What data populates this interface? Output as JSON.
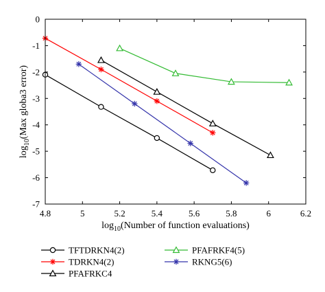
{
  "chart_data": {
    "type": "line",
    "xlabel_prefix": "log",
    "xlabel_sub": "10",
    "xlabel_rest": "(Number of function evaluations)",
    "ylabel_prefix": "log",
    "ylabel_sub": "10",
    "ylabel_rest": "(Max globa3 error)",
    "xlim": [
      4.8,
      6.2
    ],
    "ylim": [
      -7,
      0
    ],
    "xticks": [
      4.8,
      5,
      5.2,
      5.4,
      5.6,
      5.8,
      6,
      6.2
    ],
    "xtick_labels": [
      "4.8",
      "5",
      "5.2",
      "5.4",
      "5.6",
      "5.8",
      "6",
      "6.2"
    ],
    "yticks": [
      0,
      -1,
      -2,
      -3,
      -4,
      -5,
      -6,
      -7
    ],
    "ytick_labels": [
      "0",
      "-1",
      "-2",
      "-3",
      "-4",
      "-5",
      "-6",
      "-7"
    ],
    "grid": false,
    "legend_placement": "below",
    "series": [
      {
        "name": "TFTDRKN4(2)",
        "color": "#000000",
        "marker": "circle",
        "x": [
          4.8,
          5.1,
          5.4,
          5.7
        ],
        "y": [
          -2.1,
          -3.32,
          -4.5,
          -5.72
        ]
      },
      {
        "name": "TDRKN4(2)",
        "color": "#ff0000",
        "marker": "star",
        "x": [
          4.8,
          5.1,
          5.4,
          5.7
        ],
        "y": [
          -0.72,
          -1.9,
          -3.1,
          -4.3
        ]
      },
      {
        "name": "PFAFRKC4",
        "color": "#000000",
        "marker": "triangle",
        "x": [
          5.1,
          5.4,
          5.7,
          6.01
        ],
        "y": [
          -1.55,
          -2.75,
          -3.95,
          -5.15
        ]
      },
      {
        "name": "PFAFRKF4(5)",
        "color": "#33bb33",
        "marker": "triangle",
        "x": [
          5.2,
          5.5,
          5.8,
          6.11
        ],
        "y": [
          -1.1,
          -2.05,
          -2.37,
          -2.4
        ]
      },
      {
        "name": "RKNG5(6)",
        "color": "#3333aa",
        "marker": "star",
        "x": [
          4.98,
          5.28,
          5.58,
          5.88
        ],
        "y": [
          -1.7,
          -3.2,
          -4.7,
          -6.2
        ]
      }
    ]
  }
}
